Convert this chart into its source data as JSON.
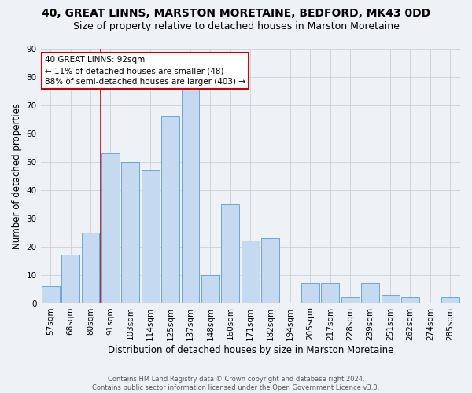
{
  "title1": "40, GREAT LINNS, MARSTON MORETAINE, BEDFORD, MK43 0DD",
  "title2": "Size of property relative to detached houses in Marston Moretaine",
  "xlabel": "Distribution of detached houses by size in Marston Moretaine",
  "ylabel": "Number of detached properties",
  "footnote": "Contains HM Land Registry data © Crown copyright and database right 2024.\nContains public sector information licensed under the Open Government Licence v3.0.",
  "categories": [
    "57sqm",
    "68sqm",
    "80sqm",
    "91sqm",
    "103sqm",
    "114sqm",
    "125sqm",
    "137sqm",
    "148sqm",
    "160sqm",
    "171sqm",
    "182sqm",
    "194sqm",
    "205sqm",
    "217sqm",
    "228sqm",
    "239sqm",
    "251sqm",
    "262sqm",
    "274sqm",
    "285sqm"
  ],
  "values": [
    6,
    17,
    25,
    53,
    50,
    47,
    66,
    76,
    10,
    35,
    22,
    23,
    0,
    7,
    7,
    2,
    7,
    3,
    2,
    0,
    2
  ],
  "bar_color": "#c5d9f0",
  "bar_edge_color": "#5b9bd5",
  "property_line_idx": 3,
  "annotation_line1": "40 GREAT LINNS: 92sqm",
  "annotation_line2": "← 11% of detached houses are smaller (48)",
  "annotation_line3": "88% of semi-detached houses are larger (403) →",
  "annotation_box_color": "#ffffff",
  "annotation_box_edge": "#cc0000",
  "vline_color": "#cc0000",
  "ylim": [
    0,
    90
  ],
  "yticks": [
    0,
    10,
    20,
    30,
    40,
    50,
    60,
    70,
    80,
    90
  ],
  "grid_color": "#c8d0d8",
  "background_color": "#eef2f7",
  "title1_fontsize": 10,
  "title2_fontsize": 9,
  "xlabel_fontsize": 8.5,
  "ylabel_fontsize": 8.5,
  "tick_fontsize": 7.5,
  "annotation_fontsize": 7.5,
  "footnote_fontsize": 6
}
